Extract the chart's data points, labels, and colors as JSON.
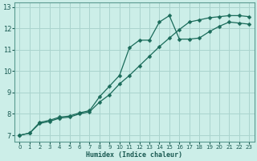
{
  "title": "",
  "xlabel": "Humidex (Indice chaleur)",
  "ylabel": "",
  "bg_color": "#cceee8",
  "grid_color": "#aad4ce",
  "line_color": "#1a6b5a",
  "xlim": [
    -0.5,
    23.5
  ],
  "ylim": [
    6.7,
    13.2
  ],
  "xticks": [
    0,
    1,
    2,
    3,
    4,
    5,
    6,
    7,
    8,
    9,
    10,
    11,
    12,
    13,
    14,
    15,
    16,
    17,
    18,
    19,
    20,
    21,
    22,
    23
  ],
  "yticks": [
    7,
    8,
    9,
    10,
    11,
    12,
    13
  ],
  "line1_x": [
    0,
    1,
    2,
    3,
    4,
    5,
    6,
    7,
    8,
    9,
    10,
    11,
    12,
    13,
    14,
    15,
    16,
    17,
    18,
    19,
    20,
    21,
    22,
    23
  ],
  "line1_y": [
    7.0,
    7.1,
    7.6,
    7.7,
    7.85,
    7.9,
    8.05,
    8.15,
    8.8,
    9.3,
    9.8,
    11.1,
    11.45,
    11.45,
    12.3,
    12.6,
    11.5,
    11.5,
    11.55,
    11.85,
    12.1,
    12.3,
    12.25,
    12.2
  ],
  "line2_x": [
    0,
    1,
    2,
    3,
    4,
    5,
    6,
    7,
    8,
    9,
    10,
    11,
    12,
    13,
    14,
    15,
    16,
    17,
    18,
    19,
    20,
    21,
    22,
    23
  ],
  "line2_y": [
    7.0,
    7.1,
    7.55,
    7.65,
    7.8,
    7.85,
    8.0,
    8.1,
    8.55,
    8.9,
    9.4,
    9.8,
    10.25,
    10.7,
    11.15,
    11.55,
    11.95,
    12.3,
    12.4,
    12.5,
    12.55,
    12.6,
    12.6,
    12.55
  ]
}
